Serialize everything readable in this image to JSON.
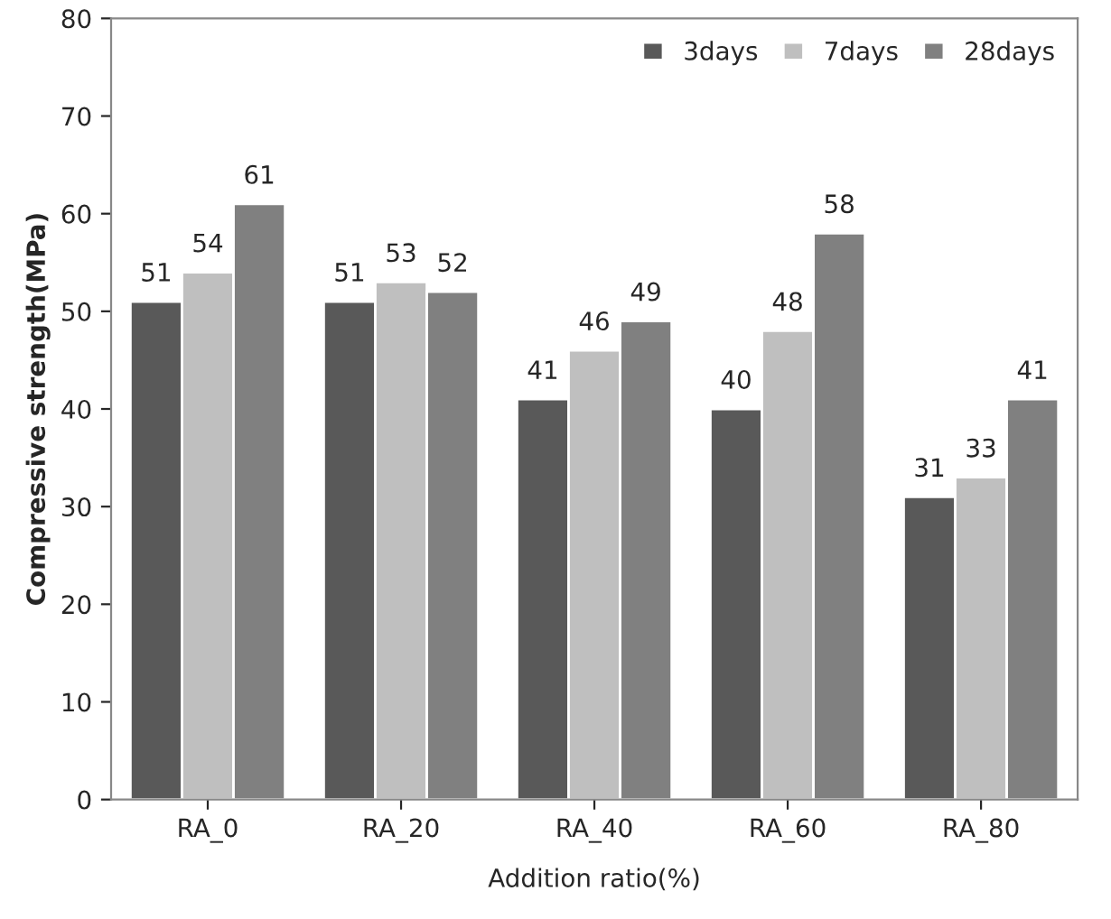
{
  "chart_data": {
    "type": "bar",
    "xlabel": "Addition ratio(%)",
    "ylabel": "Compressive strength(MPa)",
    "categories": [
      "RA_0",
      "RA_20",
      "RA_40",
      "RA_60",
      "RA_80"
    ],
    "series": [
      {
        "name": "3days",
        "color": "#595959",
        "values": [
          51,
          51,
          41,
          40,
          31
        ]
      },
      {
        "name": "7days",
        "color": "#bfbfbf",
        "values": [
          54,
          53,
          46,
          48,
          33
        ]
      },
      {
        "name": "28days",
        "color": "#808080",
        "values": [
          61,
          52,
          49,
          58,
          41
        ]
      }
    ],
    "ylim": [
      0,
      80
    ],
    "yticks": [
      0,
      10,
      20,
      30,
      40,
      50,
      60,
      70,
      80
    ],
    "data_labels": true,
    "legend": "top right",
    "grid": false
  }
}
